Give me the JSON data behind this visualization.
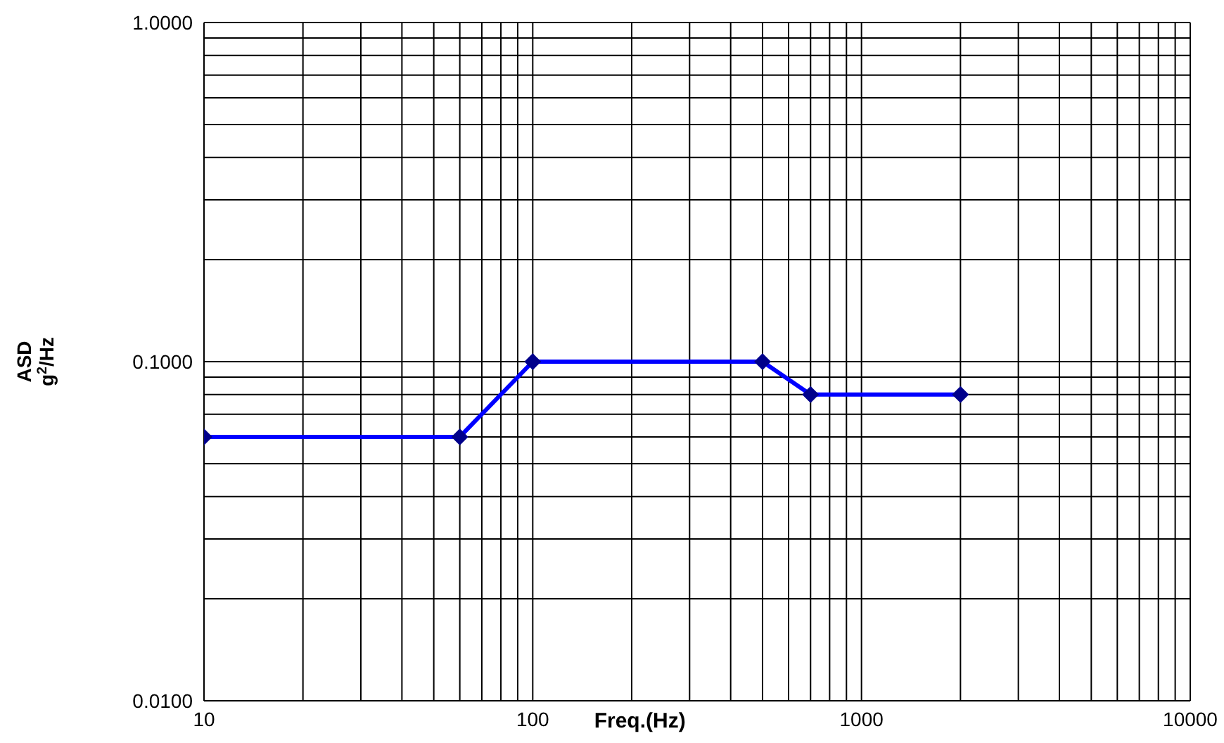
{
  "chart_data": {
    "type": "line",
    "xlabel": "Freq.(Hz)",
    "ylabel": "ASD\ng$^{2}$/Hz",
    "log": "xy",
    "grid": true,
    "marker": "diamond",
    "line_style": "solid",
    "x": [
      10,
      60,
      100,
      500,
      700,
      2000
    ],
    "series": [
      {
        "color": "#0000ff",
        "values": [
          0.06,
          0.06,
          0.1,
          0.1,
          0.08,
          0.08
        ]
      }
    ],
    "xlim": [
      10,
      10000
    ],
    "ylim": [
      0.01,
      1
    ],
    "xticks": [
      10,
      {
        "value": 20,
        "label": null
      },
      {
        "value": 30,
        "label": null
      },
      {
        "value": 40,
        "label": null
      },
      {
        "value": 50,
        "label": null
      },
      {
        "value": 60,
        "label": null
      },
      {
        "value": 70,
        "label": null
      },
      {
        "value": 80,
        "label": null
      },
      {
        "value": 90,
        "label": null
      },
      100,
      {
        "value": 200,
        "label": null
      },
      {
        "value": 300,
        "label": null
      },
      {
        "value": 400,
        "label": null
      },
      {
        "value": 500,
        "label": null
      },
      {
        "value": 600,
        "label": null
      },
      {
        "value": 700,
        "label": null
      },
      {
        "value": 800,
        "label": null
      },
      {
        "value": 900,
        "label": null
      },
      1000,
      {
        "value": 2000,
        "label": null
      },
      {
        "value": 3000,
        "label": null
      },
      {
        "value": 4000,
        "label": null
      },
      {
        "value": 5000,
        "label": null
      },
      {
        "value": 6000,
        "label": null
      },
      {
        "value": 7000,
        "label": null
      },
      {
        "value": 8000,
        "label": null
      },
      {
        "value": 9000,
        "label": null
      },
      10000
    ],
    "yticks": [
      {
        "value": 0.01,
        "label": "0.0100"
      },
      {
        "value": 0.02,
        "label": null
      },
      {
        "value": 0.03,
        "label": null
      },
      {
        "value": 0.04,
        "label": null
      },
      {
        "value": 0.05,
        "label": null
      },
      {
        "value": 0.06,
        "label": null
      },
      {
        "value": 0.07,
        "label": null
      },
      {
        "value": 0.08,
        "label": null
      },
      {
        "value": 0.09,
        "label": null
      },
      {
        "value": 0.1,
        "label": "0.1000"
      },
      {
        "value": 0.2,
        "label": null
      },
      {
        "value": 0.3,
        "label": null
      },
      {
        "value": 0.4,
        "label": null
      },
      {
        "value": 0.5,
        "label": null
      },
      {
        "value": 0.6,
        "label": null
      },
      {
        "value": 0.7,
        "label": null
      },
      {
        "value": 0.8,
        "label": null
      },
      {
        "value": 0.9,
        "label": null
      },
      {
        "value": 1,
        "label": "1.0000"
      }
    ]
  }
}
